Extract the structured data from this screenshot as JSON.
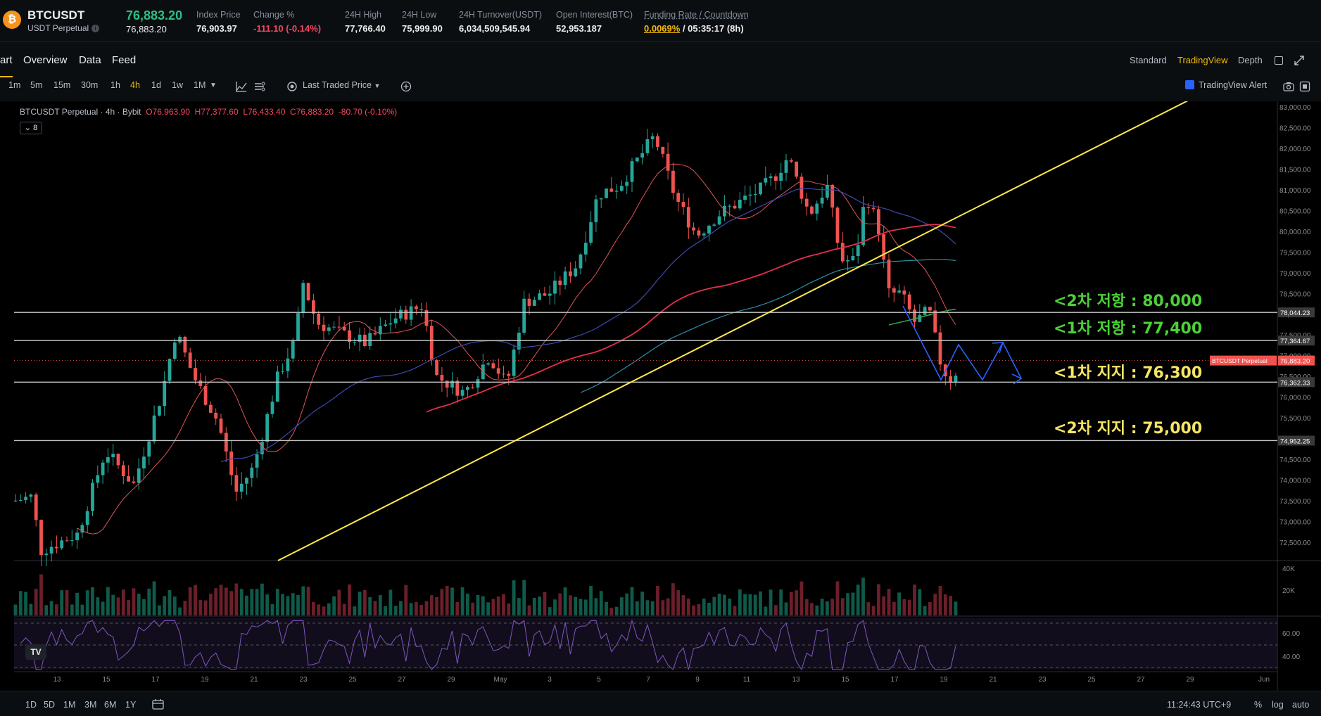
{
  "ticker": {
    "coin_glyph": "₿",
    "symbol": "BTCUSDT",
    "contract": "USDT Perpetual",
    "info_glyph": "i",
    "last_price": "76,883.20",
    "last_price_sub": "76,883.20",
    "stats": [
      {
        "label": "Index Price",
        "value": "76,903.97"
      },
      {
        "label": "Change %",
        "value": "-111.10 (-0.14%)"
      },
      {
        "label": "24H High",
        "value": "77,766.40"
      },
      {
        "label": "24H Low",
        "value": "75,999.90"
      },
      {
        "label": "24H Turnover(USDT)",
        "value": "6,034,509,545.94"
      },
      {
        "label": "Open Interest(BTC)",
        "value": "52,953.187"
      }
    ],
    "funding": {
      "label": "Funding Rate / Countdown",
      "rate": "0.0069%",
      "countdown": " / 05:35:17 (8h)"
    }
  },
  "nav": {
    "tabs": [
      "art",
      "Overview",
      "Data",
      "Feed"
    ],
    "views": [
      "Standard",
      "TradingView",
      "Depth"
    ],
    "active_view": "TradingView"
  },
  "toolbar": {
    "timeframes": [
      "1m",
      "5m",
      "15m",
      "30m",
      "1h",
      "4h",
      "1d",
      "1w",
      "1M"
    ],
    "active_timeframe": "4h",
    "price_source": "Last Traded Price",
    "alert_label": "TradingView Alert"
  },
  "legend": {
    "title": "BTCUSDT Perpetual · 4h · Bybit",
    "o": "O76,963.90",
    "h": "H77,377.60",
    "l": "L76,433.40",
    "c": "C76,883.20",
    "chg": "-80.70 (-0.10%)",
    "indicator_count": "8"
  },
  "chart_data": {
    "type": "candlestick",
    "price_axis": [
      "83,000.00",
      "82,500.00",
      "82,000.00",
      "81,500.00",
      "81,000.00",
      "80,500.00",
      "80,000.00",
      "79,500.00",
      "79,000.00",
      "78,500.00",
      "78,000.00",
      "77,500.00",
      "77,000.00",
      "76,500.00",
      "76,000.00",
      "75,500.00",
      "75,000.00",
      "74,500.00",
      "74,000.00",
      "73,500.00",
      "73,000.00",
      "72,500.00"
    ],
    "ylim": [
      72150,
      83100
    ],
    "date_ticks": [
      "13",
      "15",
      "17",
      "19",
      "21",
      "23",
      "25",
      "27",
      "29",
      "May",
      "3",
      "5",
      "7",
      "9",
      "11",
      "13",
      "15",
      "17",
      "19",
      "21",
      "23",
      "25",
      "27",
      "29",
      "Jun"
    ],
    "horizontal_levels": [
      {
        "price": 78044.23,
        "label": "78,044.23"
      },
      {
        "price": 77364.67,
        "label": "77,364.67"
      },
      {
        "price": 76362.33,
        "label": "76,362.33"
      },
      {
        "price": 74952.25,
        "label": "74,952.25"
      }
    ],
    "last_price_tag": {
      "price": 76883.2,
      "name": "BTCUSDT Perpetual",
      "label": "76,883.20"
    },
    "annotations": [
      {
        "text": "<2차 저항 : 80,000",
        "color": "#4cd137"
      },
      {
        "text": "<1차 저항 : 77,400",
        "color": "#4cd137"
      },
      {
        "text": "<1차 지지 : 76,300",
        "color": "#f5e663"
      },
      {
        "text": "<2차 지지 : 75,000",
        "color": "#f5e663"
      }
    ],
    "volume_axis": [
      "40K",
      "20K"
    ],
    "rsi_axis": [
      "60.00",
      "40.00"
    ],
    "colors": {
      "up": "#26a69a",
      "down": "#ef5350",
      "trendline": "#ffe94a",
      "projection": "#2962ff"
    }
  },
  "bottom": {
    "ranges": [
      "1D",
      "5D",
      "1M",
      "3M",
      "6M",
      "1Y"
    ],
    "clock": "11:24:43 UTC+9",
    "pct": "%",
    "log": "log",
    "auto": "auto"
  }
}
